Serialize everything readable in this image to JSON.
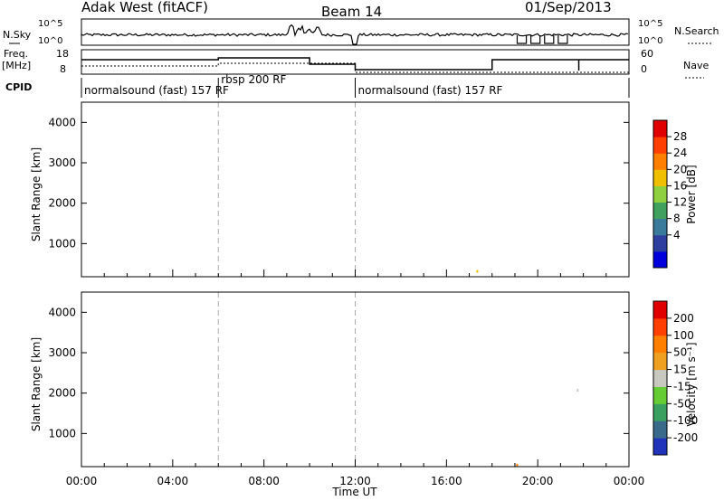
{
  "header": {
    "title": "Adak West (fitACF)",
    "beam": "Beam 14",
    "date": "01/Sep/2013"
  },
  "top_panels": {
    "left_labels": [
      "N.Sky",
      "Freq.",
      "[MHz]",
      "CPID"
    ],
    "right_labels": [
      "N.Search",
      "Nave"
    ],
    "nsky_ticks": [
      "10^5",
      "10^0"
    ],
    "nsearch_ticks": [
      "10^5",
      "10^0"
    ],
    "freq_ticks": [
      "18",
      "8"
    ],
    "nave_ticks": [
      "60",
      "0"
    ],
    "cpid_segments": [
      {
        "label": "normalsound (fast) 157 RF",
        "start_hour": 0.0,
        "end_hour": 6.0
      },
      {
        "label": "rbsp 200 RF",
        "start_hour": 6.0,
        "end_hour": 12.0
      },
      {
        "label": "normalsound (fast) 157 RF",
        "start_hour": 12.0,
        "end_hour": 24.0
      }
    ]
  },
  "chart_data": [
    {
      "type": "heatmap",
      "name": "power",
      "ylabel": "Slant Range [km]",
      "ylim": [
        180,
        4500
      ],
      "yticks": [
        1000,
        2000,
        3000,
        4000
      ],
      "xlim": [
        0,
        24
      ],
      "colorbar_label": "Power [dB]",
      "colorbar_ticks": [
        "28",
        "24",
        "20",
        "16",
        "12",
        "8",
        "4"
      ],
      "colorbar_colors": [
        "#0000dd",
        "#2f3fa0",
        "#3a7a9a",
        "#3fa060",
        "#8fd040",
        "#f0c000",
        "#ff8000",
        "#ff4000",
        "#e00000"
      ]
    },
    {
      "type": "heatmap",
      "name": "velocity",
      "ylabel": "Slant Range [km]",
      "ylim": [
        180,
        4500
      ],
      "yticks": [
        1000,
        2000,
        3000,
        4000
      ],
      "xlim": [
        0,
        24
      ],
      "xlabel": "Time UT",
      "xticks": [
        "00:00",
        "04:00",
        "08:00",
        "12:00",
        "16:00",
        "20:00",
        "00:00"
      ],
      "colorbar_label": "Velocity [m s⁻¹]",
      "colorbar_ticks": [
        "200",
        "100",
        "50",
        "15",
        "-15",
        "-50",
        "-100",
        "-200"
      ],
      "colorbar_colors": [
        "#2233bb",
        "#3a6a8a",
        "#3aa060",
        "#66cc33",
        "#c8c8c0",
        "#f0a020",
        "#ff8000",
        "#ff4000",
        "#e00000"
      ]
    }
  ]
}
